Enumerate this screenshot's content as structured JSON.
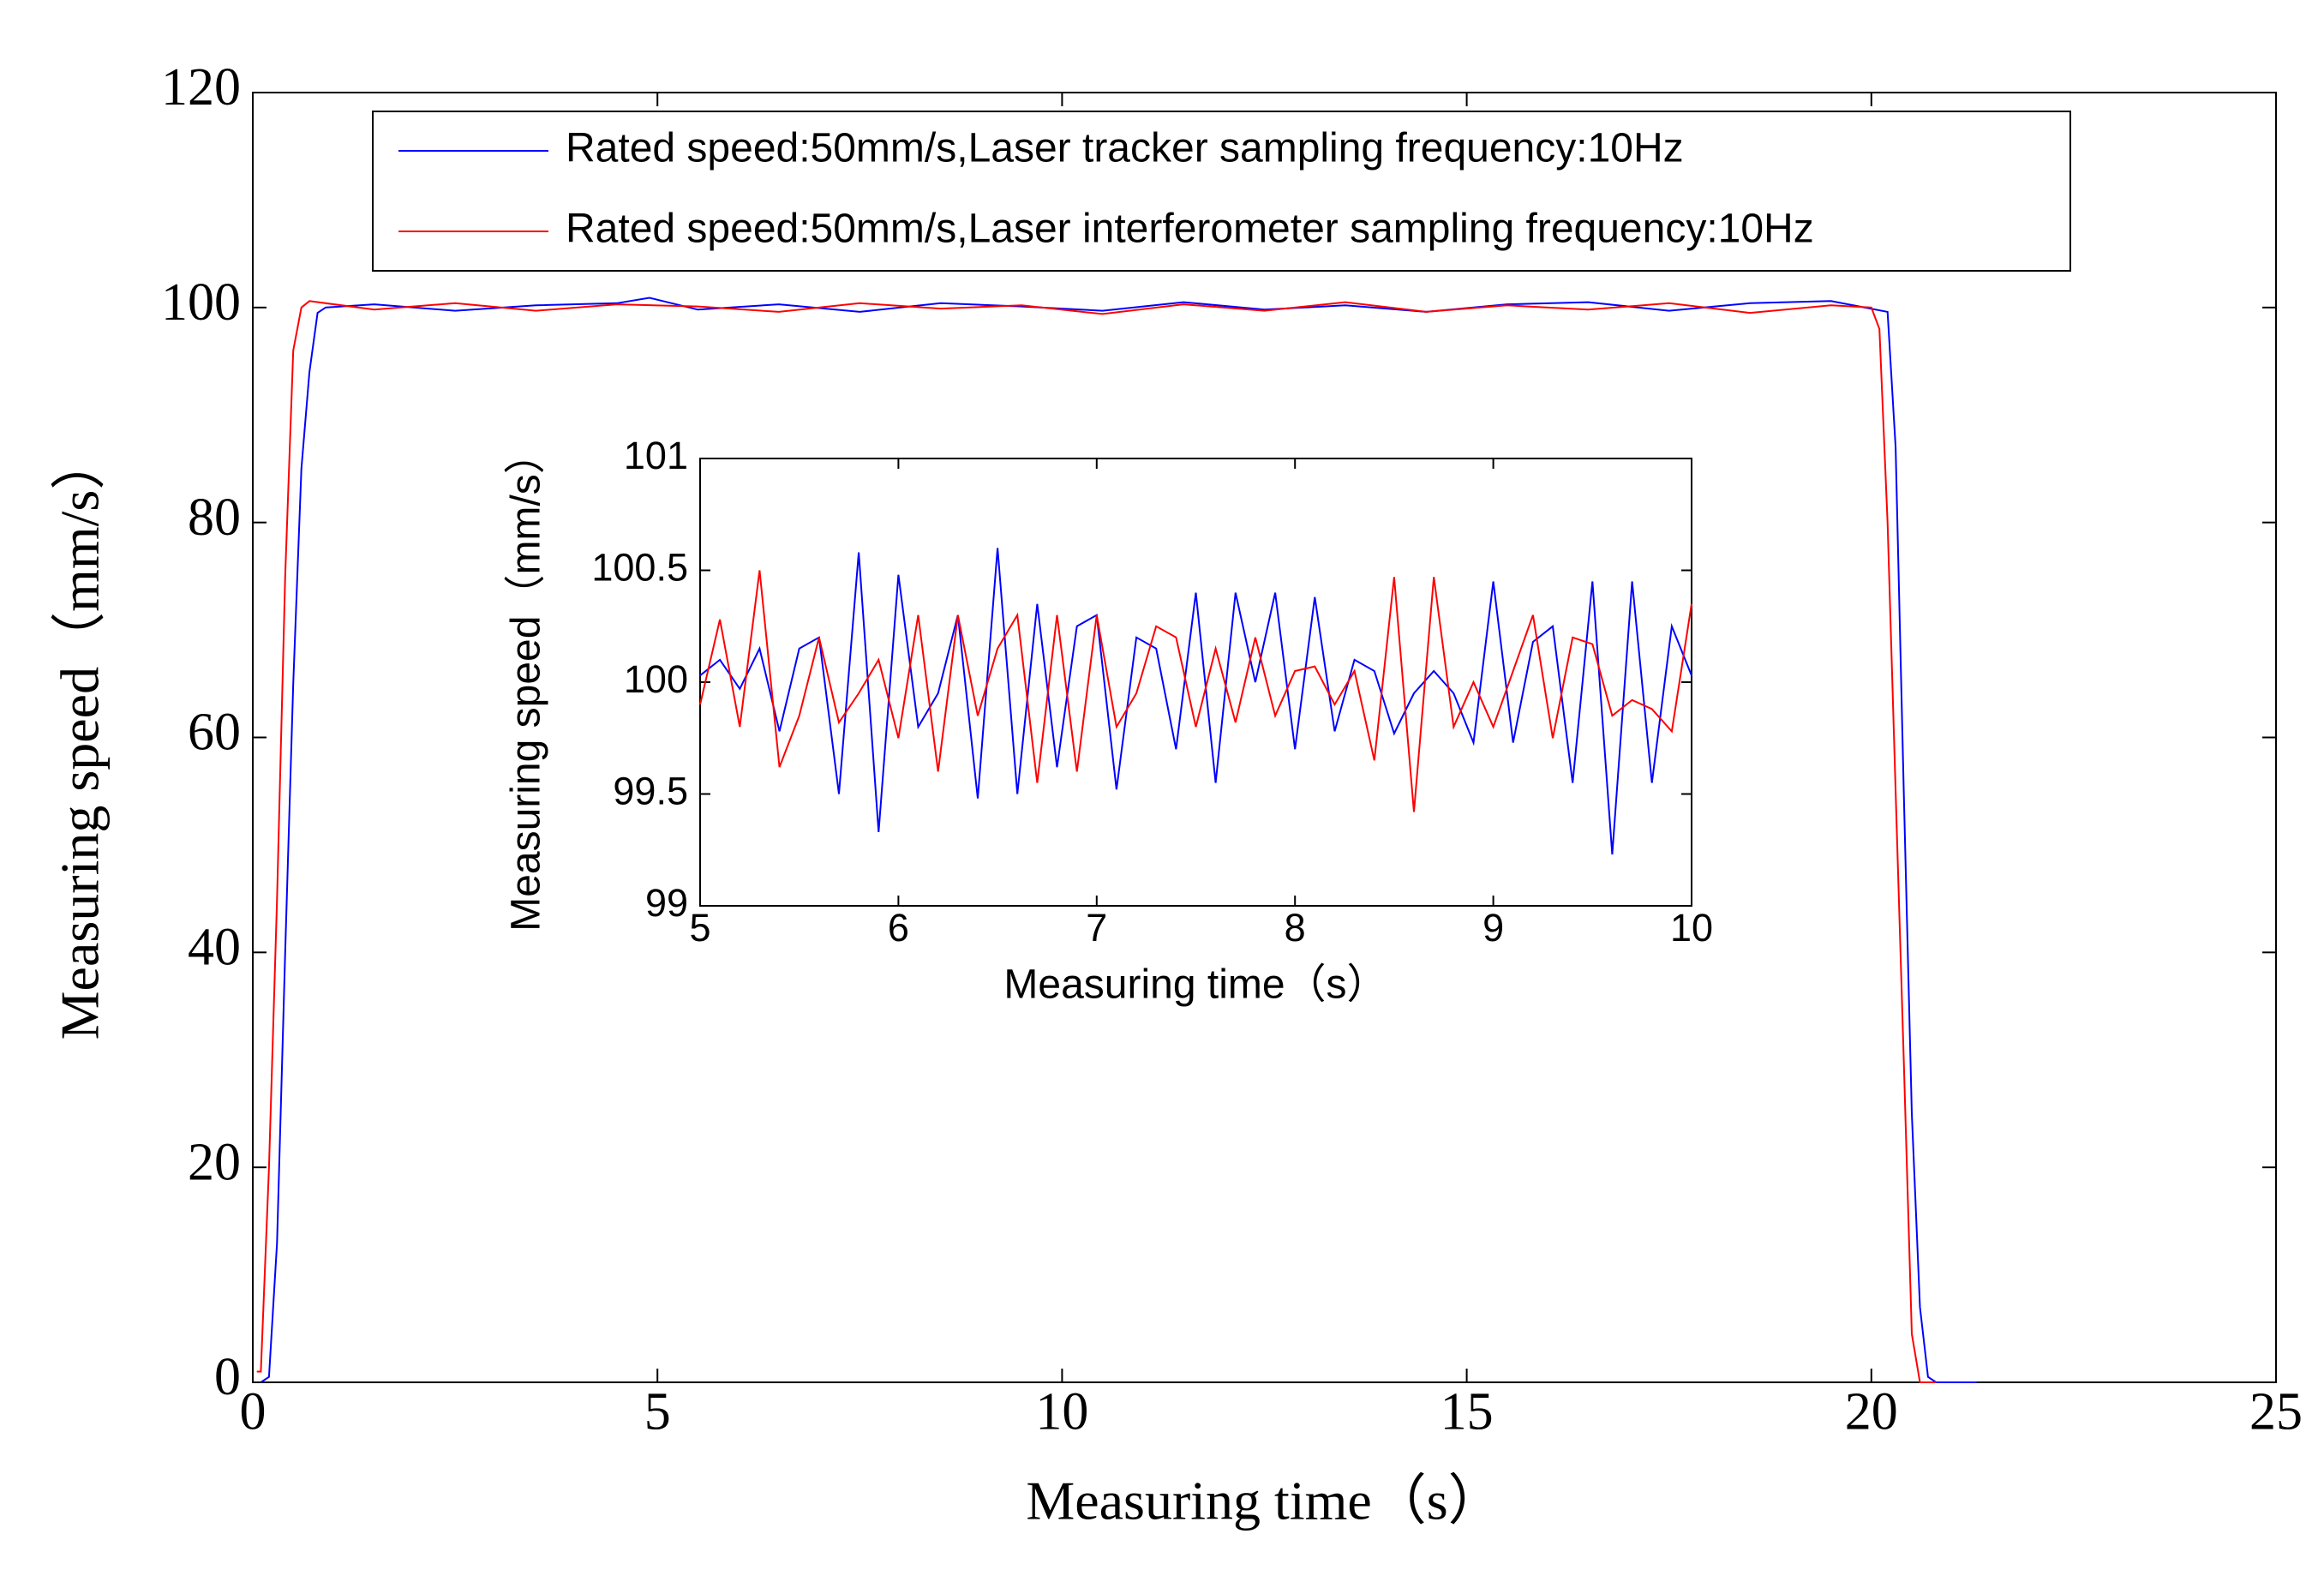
{
  "chart_data": [
    {
      "type": "line",
      "xlabel": "Measuring time（s）",
      "ylabel": "Measuring speed（mm/s）",
      "xlim": [
        0,
        25
      ],
      "xticks": [
        0,
        5,
        10,
        15,
        20,
        25
      ],
      "ylim": [
        0,
        120
      ],
      "yticks": [
        0,
        20,
        40,
        60,
        80,
        100,
        120
      ],
      "legend": "top",
      "series": [
        {
          "name": "Rated speed:50mm/s,Laser tracker sampling frequency:10Hz",
          "color": "#0000ff",
          "x": [
            0.1,
            0.2,
            0.3,
            0.4,
            0.5,
            0.6,
            0.7,
            0.8,
            0.9,
            1.5,
            2.5,
            3.5,
            4.5,
            4.9,
            5.5,
            6.5,
            7.5,
            8.5,
            9.5,
            10.5,
            11.5,
            12.5,
            13.5,
            14.5,
            15.5,
            16.5,
            17.5,
            18.5,
            19.5,
            20.2,
            20.3,
            20.4,
            20.5,
            20.6,
            20.7,
            20.8,
            21.3
          ],
          "values": [
            0,
            0.5,
            13,
            40,
            65,
            85,
            94,
            99.5,
            100,
            100.3,
            99.7,
            100.2,
            100.4,
            100.9,
            99.8,
            100.3,
            99.6,
            100.4,
            100.1,
            99.7,
            100.5,
            99.8,
            100.2,
            99.6,
            100.3,
            100.5,
            99.7,
            100.4,
            100.6,
            99.6,
            87,
            55,
            25,
            7,
            0.5,
            0,
            0
          ]
        },
        {
          "name": "Rated speed:50mm/s,Laser interferometer sampling frequency:10Hz",
          "color": "#ff0000",
          "x": [
            0.05,
            0.1,
            0.2,
            0.3,
            0.4,
            0.5,
            0.6,
            0.7,
            1.5,
            2.5,
            3.5,
            4.5,
            5.5,
            6.5,
            7.5,
            8.5,
            9.5,
            10.5,
            11.5,
            12.5,
            13.5,
            14.5,
            15.5,
            16.5,
            17.5,
            18.5,
            19.5,
            20.0,
            20.1,
            20.2,
            20.3,
            20.4,
            20.5,
            20.6,
            20.8
          ],
          "values": [
            1,
            1,
            20,
            45,
            75,
            96,
            100,
            100.6,
            99.8,
            100.4,
            99.7,
            100.3,
            100.1,
            99.6,
            100.4,
            99.9,
            100.2,
            99.4,
            100.3,
            99.7,
            100.5,
            99.6,
            100.2,
            99.8,
            100.4,
            99.5,
            100.2,
            100,
            98,
            80,
            55,
            30,
            4.5,
            0,
            0
          ]
        }
      ]
    },
    {
      "type": "line",
      "xlabel": "Measuring time（s）",
      "ylabel": "Measuring speed（mm/s）",
      "xlim": [
        5,
        10
      ],
      "xticks": [
        5,
        6,
        7,
        8,
        9,
        10
      ],
      "ylim": [
        99,
        101
      ],
      "yticks": [
        99,
        99.5,
        100,
        100.5,
        101
      ],
      "x": [
        5.0,
        5.1,
        5.2,
        5.3,
        5.4,
        5.5,
        5.6,
        5.7,
        5.8,
        5.9,
        6.0,
        6.1,
        6.2,
        6.3,
        6.4,
        6.5,
        6.6,
        6.7,
        6.8,
        6.9,
        7.0,
        7.1,
        7.2,
        7.3,
        7.4,
        7.5,
        7.6,
        7.7,
        7.8,
        7.9,
        8.0,
        8.1,
        8.2,
        8.3,
        8.4,
        8.5,
        8.6,
        8.7,
        8.8,
        8.9,
        9.0,
        9.1,
        9.2,
        9.3,
        9.4,
        9.5,
        9.6,
        9.7,
        9.8,
        9.9,
        10.0
      ],
      "series": [
        {
          "color": "#0000ff",
          "values": [
            100.03,
            100.1,
            99.97,
            100.15,
            99.78,
            100.15,
            100.2,
            99.5,
            100.58,
            99.33,
            100.48,
            99.8,
            99.95,
            100.3,
            99.48,
            100.6,
            99.5,
            100.35,
            99.62,
            100.25,
            100.3,
            99.52,
            100.2,
            100.15,
            99.7,
            100.4,
            99.55,
            100.4,
            100.0,
            100.4,
            99.7,
            100.38,
            99.78,
            100.1,
            100.05,
            99.77,
            99.95,
            100.05,
            99.95,
            99.73,
            100.45,
            99.73,
            100.18,
            100.25,
            99.55,
            100.45,
            99.23,
            100.45,
            99.55,
            100.25,
            100.03
          ]
        },
        {
          "color": "#ff0000",
          "values": [
            99.9,
            100.28,
            99.8,
            100.5,
            99.62,
            99.85,
            100.2,
            99.82,
            99.95,
            100.1,
            99.75,
            100.3,
            99.6,
            100.3,
            99.85,
            100.15,
            100.3,
            99.55,
            100.3,
            99.6,
            100.3,
            99.8,
            99.95,
            100.25,
            100.2,
            99.8,
            100.15,
            99.82,
            100.2,
            99.85,
            100.05,
            100.07,
            99.9,
            100.05,
            99.65,
            100.47,
            99.42,
            100.47,
            99.8,
            100.0,
            99.8,
            100.05,
            100.3,
            99.75,
            100.2,
            100.17,
            99.85,
            99.92,
            99.88,
            99.78,
            100.35
          ]
        }
      ]
    }
  ]
}
